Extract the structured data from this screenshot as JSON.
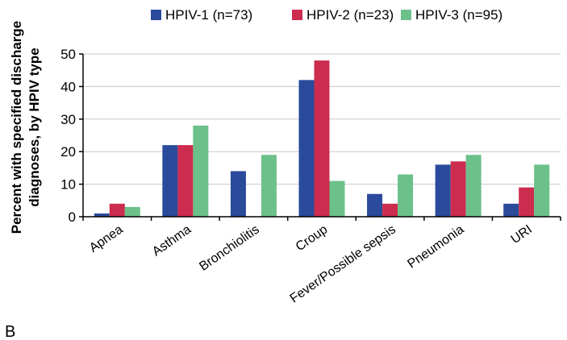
{
  "panel_label": "B",
  "chart_data": {
    "type": "bar",
    "title": "",
    "xlabel": "",
    "ylabel_lines": [
      "Percent with specified discharge",
      "diagnoses, by HPIV type"
    ],
    "ylim": [
      0,
      50
    ],
    "yticks": [
      0,
      10,
      20,
      30,
      40,
      50
    ],
    "grid": true,
    "legend_position": "top",
    "categories": [
      "Apnea",
      "Asthma",
      "Bronchiolitis",
      "Croup",
      "Fever/Possible sepsis",
      "Pneumonia",
      "URI"
    ],
    "series": [
      {
        "name": "HPIV-1 (n=73)",
        "color": "#2a4b9b",
        "values": [
          1,
          22,
          14,
          42,
          7,
          16,
          4
        ]
      },
      {
        "name": "HPIV-2 (n=23)",
        "color": "#cc2c4e",
        "values": [
          4,
          22,
          0,
          48,
          4,
          17,
          9
        ]
      },
      {
        "name": "HPIV-3 (n=95)",
        "color": "#6cc08a",
        "values": [
          3,
          28,
          19,
          11,
          13,
          19,
          16
        ]
      }
    ]
  }
}
